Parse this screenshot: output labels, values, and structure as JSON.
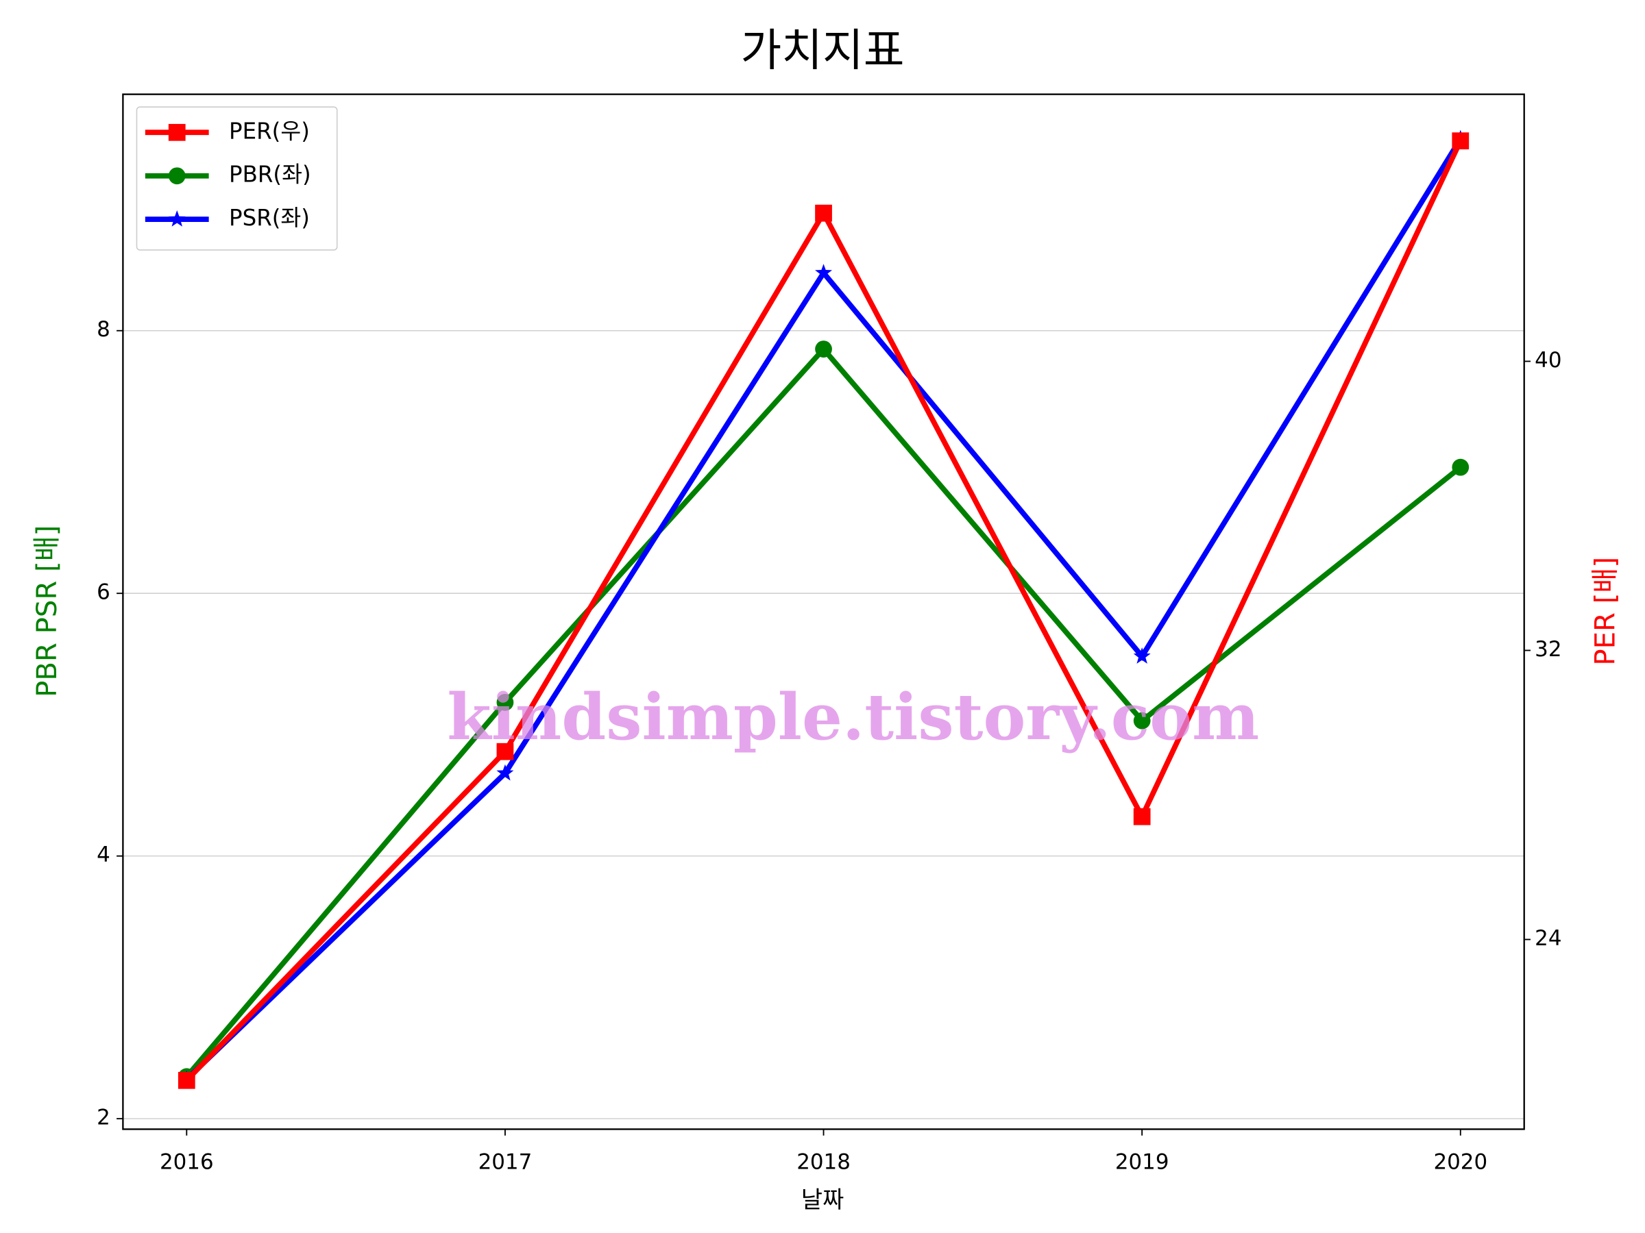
{
  "chart_data": {
    "type": "line",
    "title": "가치지표",
    "x_label": "날짜",
    "y_label": "PBR PSR [배]",
    "y2_label": "PER [배]",
    "y_label_color": "#008000",
    "y2_label_color": "#ff0000",
    "categories": [
      "2016",
      "2017",
      "2018",
      "2019",
      "2020"
    ],
    "series": [
      {
        "name": "PER(우)",
        "color": "#ff0000",
        "marker": "square",
        "axis": "y2",
        "values": [
          20.1,
          29.2,
          44.1,
          27.4,
          46.1
        ]
      },
      {
        "name": "PBR(좌)",
        "color": "#008000",
        "marker": "circle",
        "values": [
          2.32,
          5.17,
          7.86,
          5.03,
          6.96
        ]
      },
      {
        "name": "PSR(좌)",
        "color": "#0000ff",
        "marker": "star",
        "values": [
          2.3,
          4.63,
          8.44,
          5.52,
          9.46
        ]
      }
    ],
    "ylim": [
      1.92,
      9.8
    ],
    "yticks": [
      2,
      4,
      6,
      8
    ],
    "y2lim": [
      18.75,
      47.39
    ],
    "y2ticks": [
      24,
      32,
      40
    ],
    "grid": true,
    "legend": "upper left",
    "annotation": "kindsimple.tistory.com"
  }
}
